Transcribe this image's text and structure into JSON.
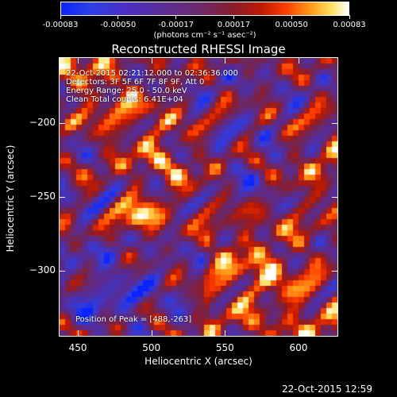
{
  "chart_data": {
    "type": "heatmap",
    "title": "Reconstructed RHESSI Image",
    "xlabel": "Heliocentric X (arcsec)",
    "ylabel": "Heliocentric Y (arcsec)",
    "xlim": [
      437,
      627
    ],
    "ylim": [
      -345,
      -155
    ],
    "x_ticks": [
      450,
      500,
      550,
      600
    ],
    "y_ticks": [
      -200,
      -250,
      -300
    ],
    "colorbar": {
      "ticks": [
        "-0.00083",
        "-0.00050",
        "-0.00017",
        "0.00017",
        "0.00050",
        "0.00083"
      ],
      "range": [
        -0.00083,
        0.00083
      ],
      "unit": "(photons cm⁻² s⁻¹ asec⁻²)"
    },
    "annotations": [
      "22-Oct-2015 02:21:12.000 to 02:36:36.000",
      "Detectors: 3F 5F 6F 7F 8F 9F, Att 0",
      "Energy Range: 25.0 - 50.0 keV",
      "Clean    Total counts: 6.41E+04"
    ],
    "peak_label": "Position of Peak = [488,-263]",
    "peak": [
      488,
      -263
    ],
    "footer": "22-Oct-2015 12:59"
  }
}
